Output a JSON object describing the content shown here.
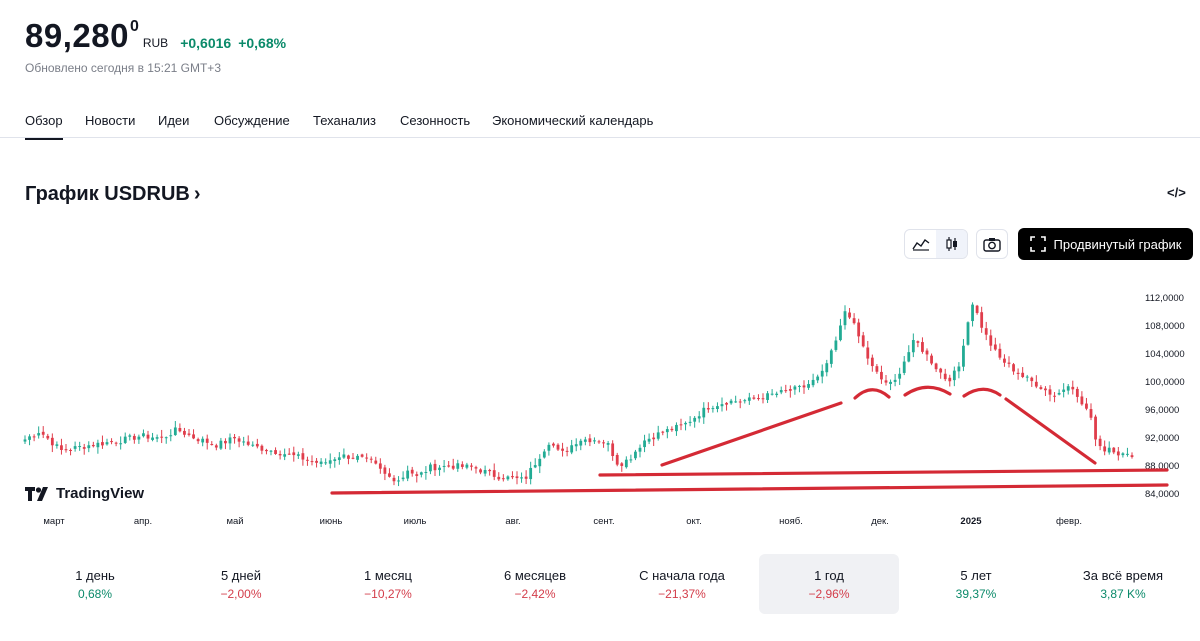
{
  "quote": {
    "price_main": "89,280",
    "price_sup": "0",
    "currency": "RUB",
    "change_abs": "+0,6016",
    "change_pct": "+0,68%",
    "updated": "Обновлено сегодня в 15:21 GMT+3"
  },
  "colors": {
    "up": "#0b8a6a",
    "down": "#d33d4a",
    "candle_up": "#22ab94",
    "candle_down": "#e03d4b",
    "annotation": "#d42a35"
  },
  "tabs": [
    "Обзор",
    "Новости",
    "Идеи",
    "Обсуждение",
    "Теханализ",
    "Сезонность",
    "Экономический календарь"
  ],
  "section": {
    "title": "График USDRUB",
    "chevron": "›",
    "embed_icon": "code-icon"
  },
  "toolbar": {
    "line_chart_icon": "area-chart-icon",
    "candles_icon": "candles-icon",
    "snapshot_icon": "camera-icon",
    "advanced_label": "Продвинутый график",
    "advanced_icon": "fullscreen-icon"
  },
  "brand": {
    "logo_text": "TradingView"
  },
  "chart_data": {
    "type": "candlestick",
    "title": "График USDRUB",
    "y_axis": {
      "min": 82,
      "max": 114,
      "ticks": [
        84,
        88,
        92,
        96,
        100,
        104,
        108,
        112
      ],
      "tick_labels": [
        "84,0000",
        "88,0000",
        "92,0000",
        "96,0000",
        "100,0000",
        "104,0000",
        "108,0000",
        "112,0000"
      ]
    },
    "x_axis": {
      "labels": [
        "март",
        "апр.",
        "май",
        "июнь",
        "июль",
        "авг.",
        "сент.",
        "окт.",
        "нояб.",
        "дек.",
        "2025",
        "февр."
      ],
      "bold": [
        "2025"
      ],
      "point_count": 244
    },
    "anchors": [
      [
        0,
        91.8
      ],
      [
        4,
        93.0
      ],
      [
        10,
        90.2
      ],
      [
        18,
        91.0
      ],
      [
        26,
        91.6
      ],
      [
        32,
        92.3
      ],
      [
        38,
        92.0
      ],
      [
        42,
        93.2
      ],
      [
        47,
        92.0
      ],
      [
        53,
        91.0
      ],
      [
        58,
        92.0
      ],
      [
        63,
        90.8
      ],
      [
        70,
        90.0
      ],
      [
        76,
        89.2
      ],
      [
        82,
        88.3
      ],
      [
        87,
        89.5
      ],
      [
        92,
        89.2
      ],
      [
        96,
        88.5
      ],
      [
        100,
        86.5
      ],
      [
        104,
        86.0
      ],
      [
        106,
        87.8
      ],
      [
        108,
        86.3
      ],
      [
        112,
        87.8
      ],
      [
        118,
        88.0
      ],
      [
        124,
        87.8
      ],
      [
        130,
        86.6
      ],
      [
        135,
        86.2
      ],
      [
        138,
        86.0
      ],
      [
        142,
        89.2
      ],
      [
        145,
        91.6
      ],
      [
        148,
        89.6
      ],
      [
        153,
        91.8
      ],
      [
        158,
        91.8
      ],
      [
        161,
        91.2
      ],
      [
        164,
        88.2
      ],
      [
        167,
        89.0
      ],
      [
        171,
        91.6
      ],
      [
        176,
        92.8
      ],
      [
        182,
        93.8
      ],
      [
        189,
        96.5
      ],
      [
        194,
        97.2
      ],
      [
        200,
        97.4
      ],
      [
        205,
        98.0
      ],
      [
        210,
        98.6
      ],
      [
        215,
        99.2
      ],
      [
        220,
        100.8
      ],
      [
        223,
        104.2
      ],
      [
        225,
        107.0
      ],
      [
        227,
        110.8
      ],
      [
        229,
        108.2
      ],
      [
        231,
        105.8
      ],
      [
        234,
        102.2
      ],
      [
        237,
        100.2
      ],
      [
        240,
        99.5
      ],
      [
        243,
        103.0
      ],
      [
        246,
        106.0
      ],
      [
        249,
        104.0
      ],
      [
        252,
        102.0
      ],
      [
        255,
        100.2
      ],
      [
        258,
        101.8
      ],
      [
        260,
        107.2
      ],
      [
        262,
        111.5
      ],
      [
        264,
        108.5
      ],
      [
        266,
        106.2
      ],
      [
        269,
        103.6
      ],
      [
        272,
        102.3
      ],
      [
        276,
        100.7
      ],
      [
        280,
        99.6
      ],
      [
        283,
        98.5
      ],
      [
        285,
        98.0
      ],
      [
        287,
        99.0
      ],
      [
        289,
        100.2
      ],
      [
        291,
        97.5
      ],
      [
        294,
        95.8
      ],
      [
        296,
        92.0
      ],
      [
        298,
        90.2
      ],
      [
        300,
        90.8
      ],
      [
        302,
        89.9
      ],
      [
        304,
        89.5
      ],
      [
        306,
        89.28
      ]
    ],
    "last_value": 89.28
  },
  "annotations": [
    "trendline-support",
    "horizontal-support-1",
    "horizontal-support-2",
    "resistance-lower-trend",
    "dome-arcs"
  ],
  "periods": [
    {
      "label": "1 день",
      "value": "0,68%",
      "dir": "pos"
    },
    {
      "label": "5 дней",
      "value": "−2,00%",
      "dir": "neg"
    },
    {
      "label": "1 месяц",
      "value": "−10,27%",
      "dir": "neg"
    },
    {
      "label": "6 месяцев",
      "value": "−2,42%",
      "dir": "neg"
    },
    {
      "label": "С начала года",
      "value": "−21,37%",
      "dir": "neg"
    },
    {
      "label": "1 год",
      "value": "−2,96%",
      "dir": "neg",
      "active": true
    },
    {
      "label": "5 лет",
      "value": "39,37%",
      "dir": "pos"
    },
    {
      "label": "За всё время",
      "value": "3,87 K%",
      "dir": "pos"
    }
  ]
}
